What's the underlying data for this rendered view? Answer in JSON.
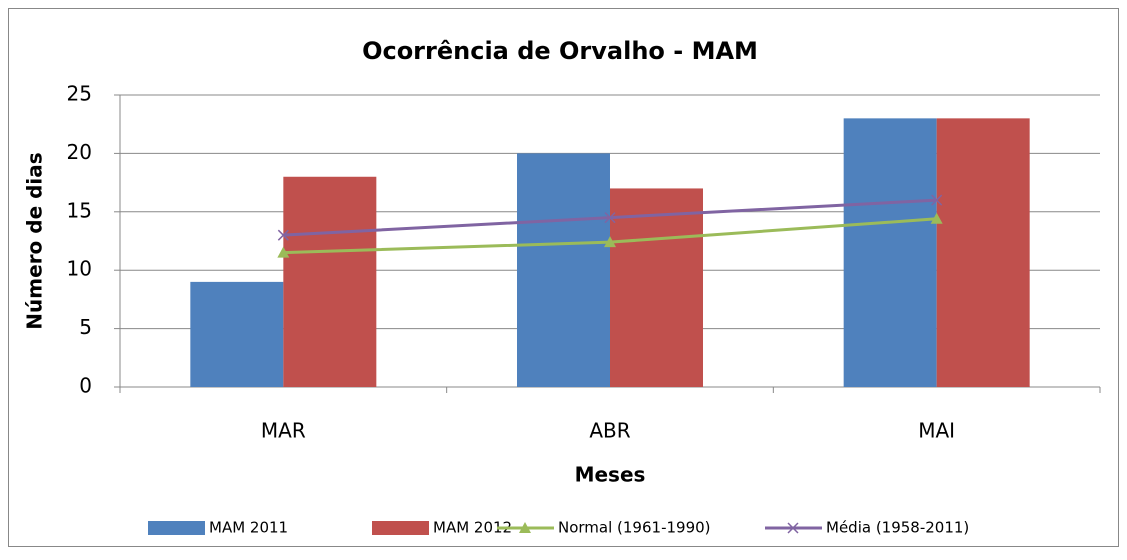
{
  "chart_data": {
    "type": "bar-line",
    "title": "Ocorrência de Orvalho - MAM",
    "x_label": "Meses",
    "y_label": "Número de dias",
    "categories": [
      "MAR",
      "ABR",
      "MAI"
    ],
    "series": [
      {
        "name": "MAM 2011",
        "type": "bar",
        "color": "#4f81bd",
        "values": [
          9,
          20,
          23
        ]
      },
      {
        "name": "MAM 2012",
        "type": "bar",
        "color": "#c0504d",
        "values": [
          18,
          17,
          23
        ]
      },
      {
        "name": "Normal (1961-1990)",
        "type": "line",
        "marker": "triangle",
        "color": "#9bbb59",
        "values": [
          11.5,
          12.4,
          14.4
        ]
      },
      {
        "name": "Média (1958-2011)",
        "type": "line",
        "marker": "x",
        "color": "#8064a2",
        "values": [
          13,
          14.5,
          16
        ]
      }
    ],
    "ylim": [
      0,
      25
    ],
    "yticks": [
      0,
      5,
      10,
      15,
      20,
      25
    ],
    "grid": true,
    "legend": "bottom"
  }
}
